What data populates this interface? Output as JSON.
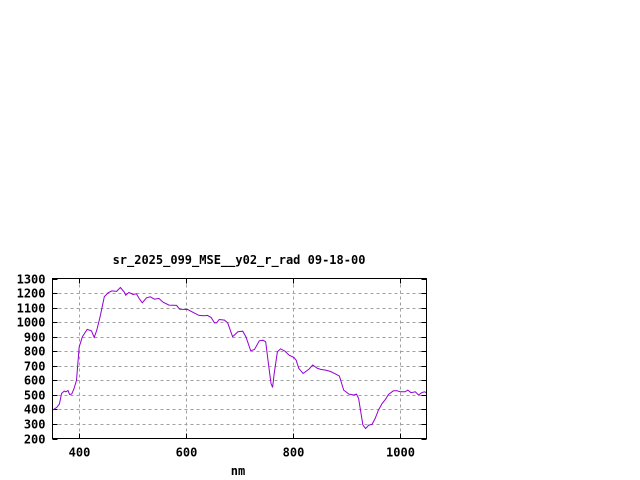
{
  "chart_data": {
    "type": "line",
    "title": "sr_2025_099_MSE__y02_r_rad 09-18-00",
    "xlabel": "nm",
    "ylabel": "",
    "xlim": [
      350,
      1050
    ],
    "ylim": [
      200,
      1300
    ],
    "xticks": [
      400,
      600,
      800,
      1000
    ],
    "yticks": [
      200,
      300,
      400,
      500,
      600,
      700,
      800,
      900,
      1000,
      1100,
      1200,
      1300
    ],
    "grid": true,
    "line_color": "#9400d3",
    "series": [
      {
        "x": [
          350,
          358,
          363,
          367,
          372,
          375,
          379,
          382,
          386,
          390,
          395,
          400,
          406,
          415,
          423,
          428,
          433,
          439,
          447,
          454,
          461,
          470,
          477,
          484,
          487,
          493,
          501,
          507,
          512,
          518,
          526,
          533,
          541,
          549,
          557,
          568,
          582,
          588,
          603,
          612,
          624,
          634,
          640,
          647,
          653,
          657,
          662,
          672,
          678,
          687,
          697,
          706,
          712,
          721,
          728,
          737,
          744,
          749,
          754,
          759,
          762,
          765,
          771,
          777,
          785,
          793,
          802,
          806,
          811,
          819,
          830,
          837,
          846,
          852,
          861,
          870,
          880,
          887,
          895,
          905,
          914,
          919,
          923,
          931,
          936,
          942,
          948,
          954,
          960,
          967,
          973,
          979,
          988,
          995,
          1001,
          1010,
          1015,
          1021,
          1029,
          1035,
          1041,
          1046,
          1050
        ],
        "y": [
          395,
          414,
          437,
          510,
          526,
          521,
          530,
          503,
          505,
          540,
          600,
          830,
          900,
          950,
          940,
          895,
          945,
          1037,
          1174,
          1202,
          1215,
          1211,
          1238,
          1208,
          1185,
          1204,
          1190,
          1195,
          1163,
          1133,
          1167,
          1174,
          1158,
          1163,
          1137,
          1117,
          1115,
          1089,
          1087,
          1069,
          1046,
          1044,
          1046,
          1032,
          995,
          995,
          1018,
          1014,
          995,
          900,
          934,
          938,
          900,
          803,
          812,
          872,
          876,
          865,
          716,
          579,
          551,
          647,
          796,
          817,
          801,
          773,
          757,
          739,
          682,
          647,
          677,
          705,
          682,
          675,
          670,
          661,
          643,
          629,
          533,
          505,
          499,
          505,
          476,
          292,
          269,
          292,
          297,
          338,
          395,
          441,
          469,
          503,
          528,
          528,
          521,
          521,
          533,
          515,
          521,
          499,
          515,
          521,
          515
        ]
      }
    ]
  }
}
